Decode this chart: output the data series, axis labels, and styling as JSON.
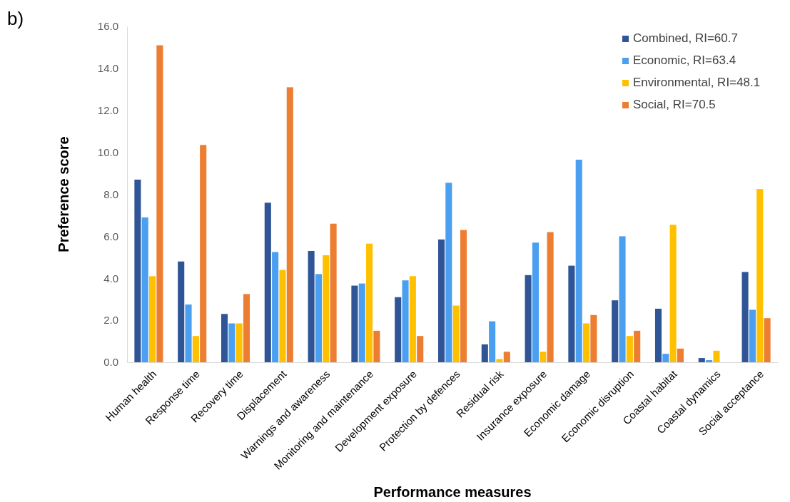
{
  "chart_data": {
    "type": "bar",
    "title": "b)",
    "xlabel": "Performance measures",
    "ylabel": "Preference score",
    "categories": [
      "Human health",
      "Response time",
      "Recovery time",
      "Displacement",
      "Warnings and awareness",
      "Monitoring and maintenance",
      "Development exposure",
      "Protection by defences",
      "Residual risk",
      "Insurance exposure",
      "Economic damage",
      "Economic disruption",
      "Coastal habitat",
      "Coastal dynamics",
      "Social acceptance"
    ],
    "series": [
      {
        "name": "Combined, RI=60.7",
        "color": "#2f5597",
        "values": [
          8.7,
          4.8,
          2.3,
          7.6,
          5.3,
          3.65,
          3.1,
          5.85,
          0.85,
          4.15,
          4.6,
          2.95,
          2.55,
          0.2,
          4.3
        ]
      },
      {
        "name": "Economic, RI=63.4",
        "color": "#4a9ff0",
        "values": [
          6.9,
          2.75,
          1.85,
          5.25,
          4.2,
          3.75,
          3.9,
          8.55,
          1.95,
          5.7,
          9.65,
          6.0,
          0.4,
          0.1,
          2.5
        ]
      },
      {
        "name": "Environmental, RI=48.1",
        "color": "#ffc000",
        "values": [
          4.1,
          1.25,
          1.85,
          4.4,
          5.1,
          5.65,
          4.1,
          2.7,
          0.15,
          0.5,
          1.85,
          1.25,
          6.55,
          0.55,
          8.25
        ]
      },
      {
        "name": "Social, RI=70.5",
        "color": "#ed7d31",
        "values": [
          15.1,
          10.35,
          3.25,
          13.1,
          6.6,
          1.5,
          1.25,
          6.3,
          0.5,
          6.2,
          2.25,
          1.5,
          0.65,
          0,
          2.1
        ]
      }
    ],
    "ylim": [
      0,
      16
    ],
    "yticks": [
      {
        "value": 0,
        "label": "0.0"
      },
      {
        "value": 2,
        "label": "2.0"
      },
      {
        "value": 4,
        "label": "4.0"
      },
      {
        "value": 6,
        "label": "6.0"
      },
      {
        "value": 8,
        "label": "8.0"
      },
      {
        "value": 10,
        "label": "10.0"
      },
      {
        "value": 12,
        "label": "12.0"
      },
      {
        "value": 14,
        "label": "14.0"
      },
      {
        "value": 16,
        "label": "16.0"
      }
    ],
    "legend": "top right"
  }
}
